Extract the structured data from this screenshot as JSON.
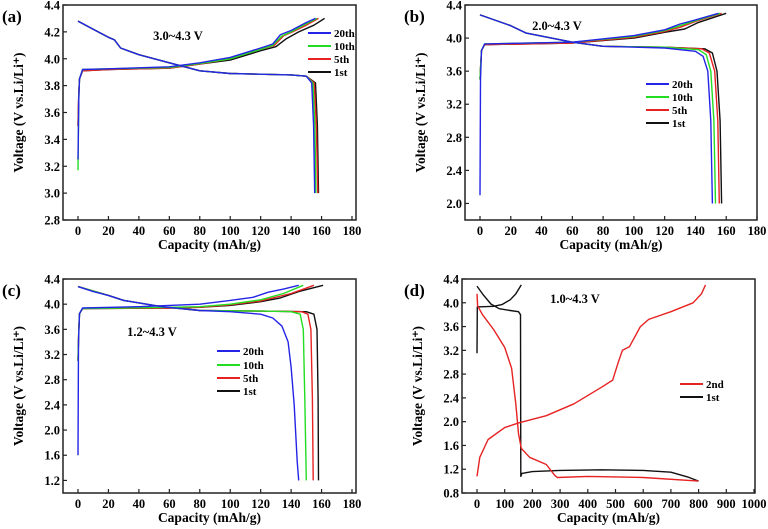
{
  "chart_data": [
    {
      "type": "line",
      "panel_label": "(a)",
      "annotation": "3.0~4.3 V",
      "xlabel": "Capacity (mAh/g)",
      "ylabel": "Voltage (V vs.Li/Li⁺)",
      "xlim": [
        -10,
        180
      ],
      "ylim": [
        2.8,
        4.4
      ],
      "xticks": [
        0,
        20,
        40,
        60,
        80,
        100,
        120,
        140,
        160,
        180
      ],
      "yticks": [
        2.8,
        3.0,
        3.2,
        3.4,
        3.6,
        3.8,
        4.0,
        4.2,
        4.4
      ],
      "ytick_decimals": 1,
      "legend_position": "top-right",
      "series": [
        {
          "name": "20th",
          "color": "#2424e6",
          "charge": {
            "x": [
              0,
              0.5,
              1,
              3,
              20,
              60,
              80,
              100,
              120,
              128,
              133,
              140,
              150,
              156
            ],
            "y": [
              3.25,
              3.7,
              3.85,
              3.92,
              3.925,
              3.94,
              3.97,
              4.01,
              4.08,
              4.11,
              4.18,
              4.21,
              4.27,
              4.3
            ]
          },
          "discharge": {
            "x": [
              0,
              10,
              20,
              24,
              28,
              40,
              60,
              80,
              100,
              140,
              150,
              153.5,
              154.8,
              155.5
            ],
            "y": [
              4.28,
              4.22,
              4.16,
              4.14,
              4.08,
              4.03,
              3.97,
              3.91,
              3.89,
              3.88,
              3.87,
              3.82,
              3.5,
              3.0
            ]
          }
        },
        {
          "name": "10th",
          "color": "#22dd22",
          "charge": {
            "x": [
              0,
              0.5,
              1,
              3,
              20,
              60,
              80,
              100,
              120,
              128,
              134,
              140,
              150,
              157
            ],
            "y": [
              3.17,
              3.7,
              3.85,
              3.92,
              3.925,
              3.935,
              3.965,
              4.0,
              4.07,
              4.1,
              4.17,
              4.2,
              4.26,
              4.3
            ]
          },
          "discharge": {
            "x": [
              0,
              10,
              20,
              24,
              28,
              40,
              60,
              80,
              100,
              140,
              150,
              154.3,
              155.6,
              156.3
            ],
            "y": [
              4.28,
              4.22,
              4.16,
              4.14,
              4.08,
              4.03,
              3.97,
              3.91,
              3.89,
              3.88,
              3.87,
              3.82,
              3.5,
              3.0
            ]
          }
        },
        {
          "name": "5th",
          "color": "#e62222",
          "charge": {
            "x": [
              0,
              0.5,
              1,
              3,
              20,
              60,
              80,
              100,
              120,
              129,
              135,
              141,
              150,
              158
            ],
            "y": [
              3.5,
              3.75,
              3.85,
              3.91,
              3.92,
              3.93,
              3.96,
              4.0,
              4.07,
              4.1,
              4.17,
              4.2,
              4.25,
              4.3
            ]
          },
          "discharge": {
            "x": [
              0,
              10,
              20,
              24,
              28,
              40,
              60,
              80,
              100,
              140,
              150,
              155.2,
              156.6,
              157.5
            ],
            "y": [
              4.28,
              4.22,
              4.16,
              4.14,
              4.08,
              4.03,
              3.97,
              3.91,
              3.89,
              3.88,
              3.87,
              3.82,
              3.5,
              3.0
            ]
          }
        },
        {
          "name": "1st",
          "color": "#111111",
          "charge": {
            "x": [
              0,
              0.5,
              1,
              3,
              20,
              60,
              80,
              100,
              120,
              130,
              137,
              145,
              155,
              162
            ],
            "y": [
              3.5,
              3.75,
              3.85,
              3.91,
              3.92,
              3.93,
              3.96,
              3.99,
              4.06,
              4.09,
              4.15,
              4.2,
              4.25,
              4.3
            ]
          },
          "discharge": {
            "x": [
              0,
              10,
              20,
              24,
              28,
              40,
              60,
              80,
              100,
              140,
              150,
              156,
              157.3,
              158
            ],
            "y": [
              4.28,
              4.22,
              4.16,
              4.14,
              4.08,
              4.03,
              3.97,
              3.91,
              3.89,
              3.88,
              3.87,
              3.82,
              3.5,
              3.0
            ]
          }
        }
      ]
    },
    {
      "type": "line",
      "panel_label": "(b)",
      "annotation": "2.0~4.3 V",
      "xlabel": "Capacity (mAh/g)",
      "ylabel": "Voltage (V vs.Li/Li⁺)",
      "xlim": [
        -10,
        180
      ],
      "ylim": [
        1.8,
        4.4
      ],
      "xticks": [
        0,
        20,
        40,
        60,
        80,
        100,
        120,
        140,
        160,
        180
      ],
      "yticks": [
        2.0,
        2.4,
        2.8,
        3.2,
        3.6,
        4.0,
        4.4
      ],
      "ytick_decimals": 1,
      "legend_position": "center-right",
      "series": [
        {
          "name": "20th",
          "color": "#2424e6",
          "charge": {
            "x": [
              0,
              0.3,
              1,
              3,
              60,
              100,
              120,
              130,
              140,
              155
            ],
            "y": [
              2.1,
              3.5,
              3.85,
              3.93,
              3.95,
              4.03,
              4.1,
              4.17,
              4.22,
              4.3
            ]
          },
          "discharge": {
            "x": [
              0,
              20,
              30,
              60,
              80,
              120,
              140,
              145,
              148,
              150,
              151
            ],
            "y": [
              4.28,
              4.15,
              4.06,
              3.95,
              3.9,
              3.88,
              3.84,
              3.78,
              3.6,
              3.0,
              2.0
            ]
          }
        },
        {
          "name": "10th",
          "color": "#22dd22",
          "charge": {
            "x": [
              0,
              0.5,
              1,
              3,
              60,
              100,
              120,
              130,
              140,
              156
            ],
            "y": [
              3.5,
              3.7,
              3.85,
              3.93,
              3.95,
              4.02,
              4.09,
              4.15,
              4.21,
              4.3
            ]
          },
          "discharge": {
            "x": [
              0,
              20,
              30,
              60,
              80,
              120,
              142,
              147,
              150,
              152,
              153
            ],
            "y": [
              4.28,
              4.15,
              4.06,
              3.95,
              3.9,
              3.89,
              3.86,
              3.8,
              3.6,
              3.0,
              2.0
            ]
          }
        },
        {
          "name": "5th",
          "color": "#e62222",
          "charge": {
            "x": [
              0,
              0.5,
              1,
              3,
              60,
              100,
              120,
              130,
              140,
              157
            ],
            "y": [
              3.5,
              3.7,
              3.85,
              3.92,
              3.94,
              4.01,
              4.08,
              4.13,
              4.2,
              4.3
            ]
          },
          "discharge": {
            "x": [
              0,
              20,
              30,
              60,
              80,
              120,
              144,
              149,
              152.5,
              154.5,
              155.5
            ],
            "y": [
              4.28,
              4.15,
              4.06,
              3.95,
              3.9,
              3.89,
              3.87,
              3.82,
              3.6,
              3.0,
              2.0
            ]
          }
        },
        {
          "name": "1st",
          "color": "#111111",
          "charge": {
            "x": [
              0,
              0.5,
              1,
              3,
              60,
              100,
              120,
              133,
              142,
              160
            ],
            "y": [
              3.5,
              3.7,
              3.85,
              3.92,
              3.94,
              4.0,
              4.07,
              4.11,
              4.19,
              4.3
            ]
          },
          "discharge": {
            "x": [
              0,
              20,
              30,
              60,
              80,
              120,
              146,
              151,
              154,
              156,
              157
            ],
            "y": [
              4.28,
              4.15,
              4.06,
              3.95,
              3.9,
              3.89,
              3.87,
              3.82,
              3.6,
              3.0,
              2.0
            ]
          }
        }
      ]
    },
    {
      "type": "line",
      "panel_label": "(c)",
      "annotation": "1.2~4.3 V",
      "xlabel": "Capacity (mAh/g)",
      "ylabel": "Voltage (V vs.Li/Li⁺)",
      "xlim": [
        -10,
        180
      ],
      "ylim": [
        1.0,
        4.4
      ],
      "xticks": [
        0,
        20,
        40,
        60,
        80,
        100,
        120,
        140,
        160,
        180
      ],
      "yticks": [
        1.2,
        1.6,
        2.0,
        2.4,
        2.8,
        3.2,
        3.6,
        4.0,
        4.4
      ],
      "ytick_decimals": 1,
      "legend_position": "center-right",
      "series": [
        {
          "name": "20th",
          "color": "#2424e6",
          "charge": {
            "x": [
              0,
              0.3,
              1,
              3,
              40,
              80,
              100,
              115,
              125,
              135,
              145
            ],
            "y": [
              1.6,
              3.4,
              3.85,
              3.94,
              3.96,
              4.0,
              4.06,
              4.11,
              4.19,
              4.24,
              4.3
            ]
          },
          "discharge": {
            "x": [
              0,
              10,
              20,
              30,
              55,
              80,
              100,
              120,
              128,
              134,
              138,
              140,
              142,
              144,
              145
            ],
            "y": [
              4.28,
              4.2,
              4.14,
              4.06,
              3.96,
              3.9,
              3.88,
              3.84,
              3.78,
              3.65,
              3.4,
              3.0,
              2.4,
              1.5,
              1.2
            ]
          }
        },
        {
          "name": "10th",
          "color": "#22dd22",
          "charge": {
            "x": [
              0,
              0.5,
              1,
              3,
              60,
              80,
              100,
              120,
              135,
              148
            ],
            "y": [
              3.1,
              3.6,
              3.85,
              3.93,
              3.95,
              3.96,
              4.0,
              4.07,
              4.17,
              4.3
            ]
          },
          "discharge": {
            "x": [
              0,
              20,
              30,
              55,
              80,
              120,
              140,
              146,
              148,
              149,
              150
            ],
            "y": [
              4.28,
              4.14,
              4.06,
              3.96,
              3.9,
              3.89,
              3.88,
              3.84,
              3.6,
              2.5,
              1.2
            ]
          }
        },
        {
          "name": "5th",
          "color": "#e62222",
          "charge": {
            "x": [
              0,
              0.5,
              1,
              3,
              60,
              80,
              100,
              120,
              140,
              155
            ],
            "y": [
              3.1,
              3.6,
              3.85,
              3.93,
              3.94,
              3.95,
              3.99,
              4.05,
              4.17,
              4.3
            ]
          },
          "discharge": {
            "x": [
              0,
              20,
              30,
              55,
              80,
              120,
              147,
              151,
              153,
              154,
              154.5
            ],
            "y": [
              4.28,
              4.14,
              4.06,
              3.96,
              3.9,
              3.89,
              3.88,
              3.84,
              3.6,
              2.5,
              1.2
            ]
          }
        },
        {
          "name": "1st",
          "color": "#111111",
          "charge": {
            "x": [
              0,
              0.5,
              1,
              3,
              60,
              80,
              100,
              120,
              133,
              145,
              161
            ],
            "y": [
              3.1,
              3.6,
              3.85,
              3.93,
              3.94,
              3.95,
              3.98,
              4.04,
              4.1,
              4.2,
              4.3
            ]
          },
          "discharge": {
            "x": [
              0,
              20,
              30,
              55,
              80,
              120,
              150,
              155,
              157,
              157.7,
              158
            ],
            "y": [
              4.28,
              4.14,
              4.06,
              3.96,
              3.9,
              3.89,
              3.88,
              3.84,
              3.6,
              2.5,
              1.2
            ]
          }
        }
      ]
    },
    {
      "type": "line",
      "panel_label": "(d)",
      "annotation": "1.0~4.3 V",
      "xlabel": "Capacity (mAh/g)",
      "ylabel": "Voltage (V vs.Li/Li⁺)",
      "xlim": [
        -50,
        1000
      ],
      "ylim": [
        0.8,
        4.4
      ],
      "xticks": [
        0,
        100,
        200,
        300,
        400,
        500,
        600,
        700,
        800,
        900,
        1000
      ],
      "yticks": [
        0.8,
        1.2,
        1.6,
        2.0,
        2.4,
        2.8,
        3.2,
        3.6,
        4.0,
        4.4
      ],
      "ytick_decimals": 1,
      "legend_position": "center-right",
      "series": [
        {
          "name": "2nd",
          "color": "#e62222",
          "charge": {
            "x": [
              0,
              10,
              40,
              100,
              150,
              250,
              350,
              450,
              490,
              510,
              525,
              550,
              590,
              620,
              700,
              780,
              810,
              825
            ],
            "y": [
              1.08,
              1.4,
              1.7,
              1.9,
              1.98,
              2.1,
              2.3,
              2.58,
              2.7,
              3.0,
              3.2,
              3.26,
              3.6,
              3.72,
              3.85,
              4.0,
              4.15,
              4.3
            ]
          },
          "discharge": {
            "x": [
              0,
              2,
              20,
              60,
              100,
              125,
              140,
              150,
              160,
              190,
              250,
              280,
              290,
              400,
              600,
              800
            ],
            "y": [
              4.15,
              3.95,
              3.8,
              3.55,
              3.25,
              2.9,
              2.3,
              1.8,
              1.55,
              1.4,
              1.28,
              1.1,
              1.06,
              1.08,
              1.06,
              1.0
            ]
          }
        },
        {
          "name": "1st",
          "color": "#111111",
          "charge": {
            "x": [
              0,
              1,
              60,
              90,
              120,
              140,
              160
            ],
            "y": [
              3.15,
              3.93,
              3.94,
              3.97,
              4.05,
              4.15,
              4.3
            ]
          },
          "discharge": {
            "x": [
              0,
              20,
              50,
              80,
              120,
              150,
              157,
              158,
              162,
              200,
              300,
              450,
              600,
              700,
              760,
              800
            ],
            "y": [
              4.28,
              4.15,
              3.98,
              3.9,
              3.87,
              3.85,
              3.8,
              1.08,
              1.13,
              1.16,
              1.18,
              1.19,
              1.18,
              1.15,
              1.07,
              1.0
            ]
          }
        }
      ]
    }
  ]
}
